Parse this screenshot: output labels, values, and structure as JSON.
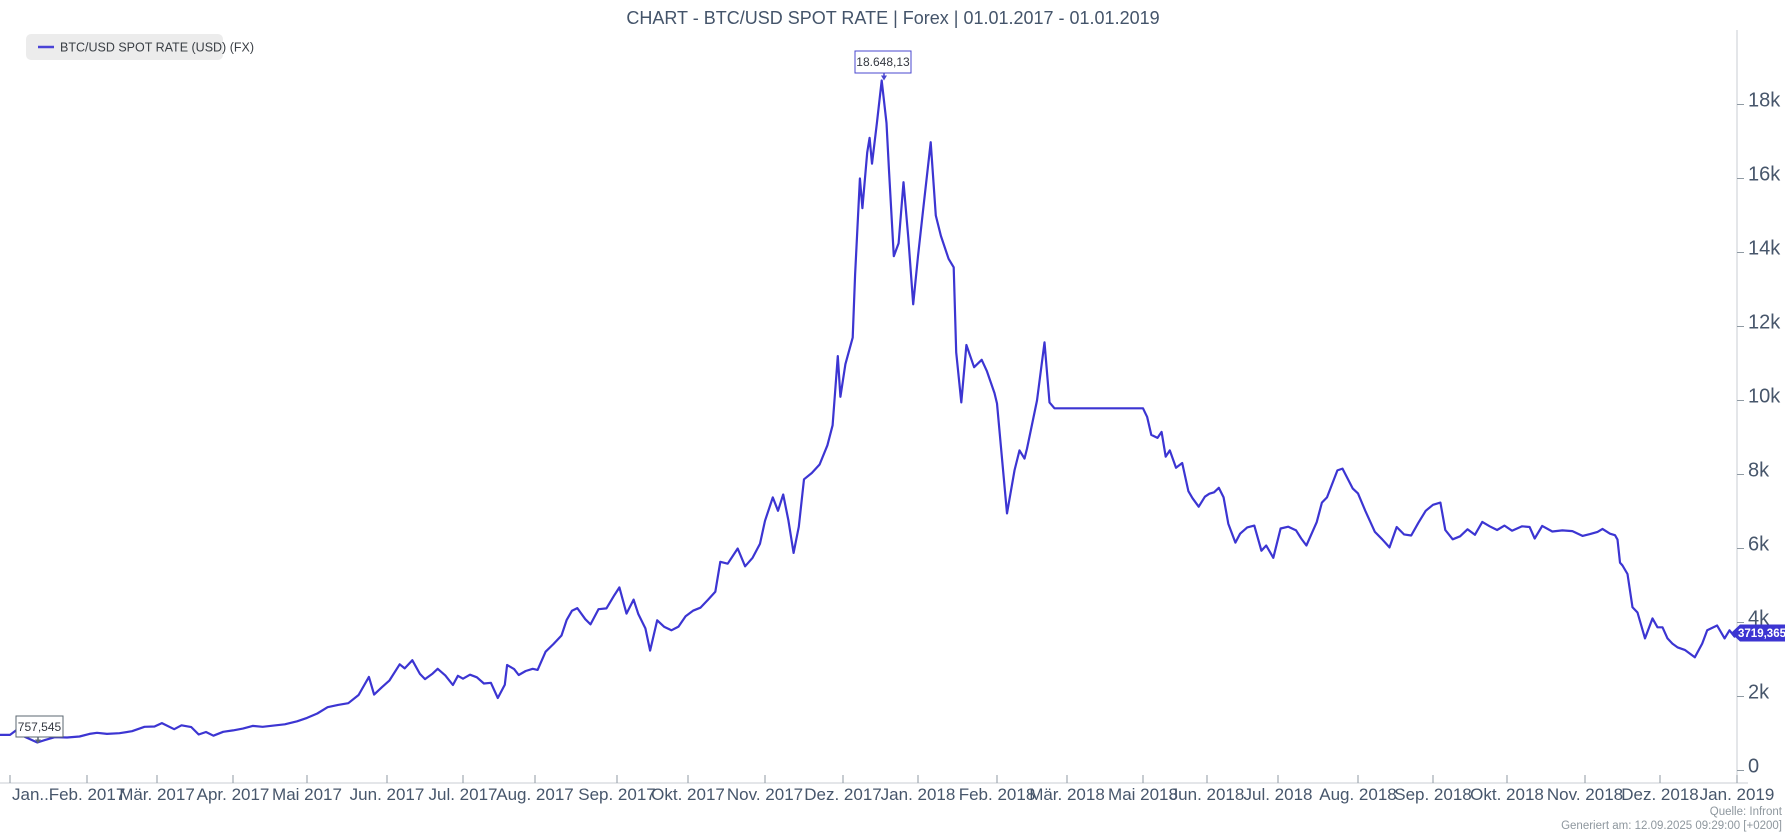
{
  "title": "CHART - BTC/USD SPOT RATE | Forex | 01.01.2017 - 01.01.2019",
  "legend": {
    "label": "BTC/USD SPOT RATE (USD) (FX)"
  },
  "annotations": {
    "high_label": "18.648,13",
    "low_label": "757,545",
    "last_badge": "3719,365"
  },
  "footer": {
    "source": "Quelle: Infront",
    "generated_at": "Generiert am: 12.09.2025 09:29:00 [+0200]"
  },
  "colors": {
    "line": "#3c35d2",
    "badge_bg": "#3c35d2",
    "axis_line": "#c9ced3",
    "tick": "#8f9aa3",
    "label_text": "#47566b",
    "muted_text": "#8e979e",
    "legend_bg": "#ececec",
    "annotation_border_high": "#4a47cf",
    "annotation_border_low": "#5b6770"
  },
  "chart_data": {
    "type": "line",
    "title": "CHART - BTC/USD SPOT RATE | Forex | 01.01.2017 - 01.01.2019",
    "xlabel": "",
    "ylabel": "",
    "ylim": [
      0,
      20000
    ],
    "grid": false,
    "legend_position": "top-left",
    "x_tick_labels": [
      "Jan...",
      "Feb. 2017",
      "Mär. 2017",
      "Apr. 2017",
      "Mai 2017",
      "Jun. 2017",
      "Jul. 2017",
      "Aug. 2017",
      "Sep. 2017",
      "Okt. 2017",
      "Nov. 2017",
      "Dez. 2017",
      "Jan. 2018",
      "Feb. 2018",
      "Mär. 2018",
      "Mai 2018",
      "Jun. 2018",
      "Jul. 2018",
      "Aug. 2018",
      "Sep. 2018",
      "Okt. 2018",
      "Nov. 2018",
      "Dez. 2018",
      "Jan. 2019"
    ],
    "y_tick_labels": [
      "0",
      "2k",
      "4k",
      "6k",
      "8k",
      "10k",
      "12k",
      "14k",
      "16k",
      "18k"
    ],
    "y_tick_values": [
      0,
      2000,
      4000,
      6000,
      8000,
      10000,
      12000,
      14000,
      16000,
      18000
    ],
    "stats": {
      "high": 18648.13,
      "low": 757.545,
      "last": 3719.365
    },
    "notes": "Apr. 2018 absent from axis; flat segment late Feb 2018 to 01.05.2018 (data gap held at ~9790).",
    "series": [
      {
        "name": "BTC/USD SPOT RATE (USD) (FX)",
        "color": "#3c35d2",
        "points": [
          [
            "2017-01-01",
            963
          ],
          [
            "2017-01-04",
            1114
          ],
          [
            "2017-01-07",
            908
          ],
          [
            "2017-01-12",
            757.545
          ],
          [
            "2017-01-15",
            821
          ],
          [
            "2017-01-19",
            899
          ],
          [
            "2017-01-24",
            892
          ],
          [
            "2017-01-29",
            920
          ],
          [
            "2017-02-02",
            989
          ],
          [
            "2017-02-05",
            1018
          ],
          [
            "2017-02-09",
            988
          ],
          [
            "2017-02-14",
            1008
          ],
          [
            "2017-02-19",
            1062
          ],
          [
            "2017-02-24",
            1180
          ],
          [
            "2017-02-28",
            1190
          ],
          [
            "2017-03-03",
            1280
          ],
          [
            "2017-03-08",
            1115
          ],
          [
            "2017-03-11",
            1222
          ],
          [
            "2017-03-15",
            1172
          ],
          [
            "2017-03-18",
            972
          ],
          [
            "2017-03-21",
            1040
          ],
          [
            "2017-03-24",
            940
          ],
          [
            "2017-03-28",
            1046
          ],
          [
            "2017-04-01",
            1085
          ],
          [
            "2017-04-05",
            1133
          ],
          [
            "2017-04-09",
            1206
          ],
          [
            "2017-04-13",
            1180
          ],
          [
            "2017-04-17",
            1210
          ],
          [
            "2017-04-22",
            1250
          ],
          [
            "2017-04-27",
            1330
          ],
          [
            "2017-05-01",
            1421
          ],
          [
            "2017-05-05",
            1540
          ],
          [
            "2017-05-09",
            1712
          ],
          [
            "2017-05-13",
            1772
          ],
          [
            "2017-05-17",
            1819
          ],
          [
            "2017-05-21",
            2041
          ],
          [
            "2017-05-25",
            2530
          ],
          [
            "2017-05-27",
            2050
          ],
          [
            "2017-05-30",
            2250
          ],
          [
            "2017-06-02",
            2435
          ],
          [
            "2017-06-06",
            2870
          ],
          [
            "2017-06-08",
            2760
          ],
          [
            "2017-06-11",
            2980
          ],
          [
            "2017-06-14",
            2610
          ],
          [
            "2017-06-16",
            2470
          ],
          [
            "2017-06-19",
            2620
          ],
          [
            "2017-06-21",
            2750
          ],
          [
            "2017-06-24",
            2570
          ],
          [
            "2017-06-27",
            2310
          ],
          [
            "2017-06-29",
            2560
          ],
          [
            "2017-07-01",
            2480
          ],
          [
            "2017-07-04",
            2590
          ],
          [
            "2017-07-07",
            2520
          ],
          [
            "2017-07-10",
            2350
          ],
          [
            "2017-07-13",
            2370
          ],
          [
            "2017-07-16",
            1960
          ],
          [
            "2017-07-19",
            2320
          ],
          [
            "2017-07-20",
            2850
          ],
          [
            "2017-07-23",
            2740
          ],
          [
            "2017-07-25",
            2580
          ],
          [
            "2017-07-28",
            2690
          ],
          [
            "2017-07-31",
            2750
          ],
          [
            "2017-08-02",
            2720
          ],
          [
            "2017-08-05",
            3210
          ],
          [
            "2017-08-08",
            3420
          ],
          [
            "2017-08-11",
            3650
          ],
          [
            "2017-08-13",
            4070
          ],
          [
            "2017-08-15",
            4320
          ],
          [
            "2017-08-17",
            4390
          ],
          [
            "2017-08-20",
            4090
          ],
          [
            "2017-08-22",
            3950
          ],
          [
            "2017-08-25",
            4360
          ],
          [
            "2017-08-28",
            4380
          ],
          [
            "2017-08-31",
            4740
          ],
          [
            "2017-09-02",
            4950
          ],
          [
            "2017-09-05",
            4240
          ],
          [
            "2017-09-08",
            4620
          ],
          [
            "2017-09-10",
            4230
          ],
          [
            "2017-09-13",
            3840
          ],
          [
            "2017-09-15",
            3240
          ],
          [
            "2017-09-18",
            4060
          ],
          [
            "2017-09-21",
            3880
          ],
          [
            "2017-09-24",
            3790
          ],
          [
            "2017-09-27",
            3890
          ],
          [
            "2017-09-30",
            4170
          ],
          [
            "2017-10-03",
            4320
          ],
          [
            "2017-10-06",
            4400
          ],
          [
            "2017-10-09",
            4610
          ],
          [
            "2017-10-12",
            4830
          ],
          [
            "2017-10-14",
            5640
          ],
          [
            "2017-10-17",
            5590
          ],
          [
            "2017-10-21",
            6000
          ],
          [
            "2017-10-24",
            5520
          ],
          [
            "2017-10-27",
            5750
          ],
          [
            "2017-10-30",
            6130
          ],
          [
            "2017-11-01",
            6750
          ],
          [
            "2017-11-04",
            7380
          ],
          [
            "2017-11-06",
            7020
          ],
          [
            "2017-11-08",
            7460
          ],
          [
            "2017-11-10",
            6760
          ],
          [
            "2017-11-12",
            5880
          ],
          [
            "2017-11-14",
            6590
          ],
          [
            "2017-11-16",
            7870
          ],
          [
            "2017-11-19",
            8040
          ],
          [
            "2017-11-22",
            8270
          ],
          [
            "2017-11-25",
            8790
          ],
          [
            "2017-11-27",
            9330
          ],
          [
            "2017-11-29",
            11200
          ],
          [
            "2017-11-30",
            10100
          ],
          [
            "2017-12-02",
            10980
          ],
          [
            "2017-12-05",
            11700
          ],
          [
            "2017-12-06",
            13400
          ],
          [
            "2017-12-08",
            16000
          ],
          [
            "2017-12-09",
            15200
          ],
          [
            "2017-12-11",
            16700
          ],
          [
            "2017-12-12",
            17100
          ],
          [
            "2017-12-13",
            16400
          ],
          [
            "2017-12-15",
            17500
          ],
          [
            "2017-12-17",
            18648.13
          ],
          [
            "2017-12-19",
            17500
          ],
          [
            "2017-12-20",
            16220
          ],
          [
            "2017-12-22",
            13900
          ],
          [
            "2017-12-24",
            14250
          ],
          [
            "2017-12-26",
            15900
          ],
          [
            "2017-12-28",
            14400
          ],
          [
            "2017-12-30",
            12600
          ],
          [
            "2018-01-01",
            13900
          ],
          [
            "2018-01-03",
            15150
          ],
          [
            "2018-01-06",
            16980
          ],
          [
            "2018-01-08",
            15000
          ],
          [
            "2018-01-10",
            14450
          ],
          [
            "2018-01-13",
            13830
          ],
          [
            "2018-01-15",
            13600
          ],
          [
            "2018-01-16",
            11300
          ],
          [
            "2018-01-18",
            9950
          ],
          [
            "2018-01-20",
            11500
          ],
          [
            "2018-01-23",
            10900
          ],
          [
            "2018-01-26",
            11100
          ],
          [
            "2018-01-28",
            10800
          ],
          [
            "2018-01-31",
            10200
          ],
          [
            "2018-02-01",
            9920
          ],
          [
            "2018-02-05",
            6950
          ],
          [
            "2018-02-08",
            8110
          ],
          [
            "2018-02-10",
            8650
          ],
          [
            "2018-02-12",
            8430
          ],
          [
            "2018-02-13",
            8700
          ],
          [
            "2018-02-17",
            10000
          ],
          [
            "2018-02-20",
            11570
          ],
          [
            "2018-02-22",
            9950
          ],
          [
            "2018-02-24",
            9790
          ],
          [
            "2018-05-01",
            9790
          ],
          [
            "2018-05-03",
            9560
          ],
          [
            "2018-05-05",
            9070
          ],
          [
            "2018-05-08",
            8990
          ],
          [
            "2018-05-10",
            9150
          ],
          [
            "2018-05-12",
            8480
          ],
          [
            "2018-05-14",
            8650
          ],
          [
            "2018-05-17",
            8180
          ],
          [
            "2018-05-20",
            8310
          ],
          [
            "2018-05-23",
            7550
          ],
          [
            "2018-05-25",
            7360
          ],
          [
            "2018-05-28",
            7130
          ],
          [
            "2018-05-31",
            7400
          ],
          [
            "2018-06-02",
            7480
          ],
          [
            "2018-06-04",
            7520
          ],
          [
            "2018-06-06",
            7640
          ],
          [
            "2018-06-08",
            7380
          ],
          [
            "2018-06-10",
            6670
          ],
          [
            "2018-06-13",
            6160
          ],
          [
            "2018-06-15",
            6400
          ],
          [
            "2018-06-18",
            6570
          ],
          [
            "2018-06-21",
            6620
          ],
          [
            "2018-06-24",
            5940
          ],
          [
            "2018-06-26",
            6080
          ],
          [
            "2018-06-29",
            5750
          ],
          [
            "2018-07-02",
            6540
          ],
          [
            "2018-07-05",
            6590
          ],
          [
            "2018-07-08",
            6490
          ],
          [
            "2018-07-10",
            6270
          ],
          [
            "2018-07-12",
            6080
          ],
          [
            "2018-07-16",
            6710
          ],
          [
            "2018-07-18",
            7240
          ],
          [
            "2018-07-20",
            7380
          ],
          [
            "2018-07-24",
            8110
          ],
          [
            "2018-07-26",
            8160
          ],
          [
            "2018-07-30",
            7620
          ],
          [
            "2018-08-01",
            7490
          ],
          [
            "2018-08-04",
            7020
          ],
          [
            "2018-08-08",
            6450
          ],
          [
            "2018-08-11",
            6250
          ],
          [
            "2018-08-14",
            6030
          ],
          [
            "2018-08-17",
            6580
          ],
          [
            "2018-08-20",
            6380
          ],
          [
            "2018-08-23",
            6350
          ],
          [
            "2018-08-26",
            6700
          ],
          [
            "2018-08-29",
            7020
          ],
          [
            "2018-09-01",
            7180
          ],
          [
            "2018-09-04",
            7240
          ],
          [
            "2018-09-06",
            6500
          ],
          [
            "2018-09-09",
            6250
          ],
          [
            "2018-09-12",
            6330
          ],
          [
            "2018-09-15",
            6520
          ],
          [
            "2018-09-18",
            6370
          ],
          [
            "2018-09-21",
            6720
          ],
          [
            "2018-09-24",
            6600
          ],
          [
            "2018-09-27",
            6500
          ],
          [
            "2018-09-30",
            6620
          ],
          [
            "2018-10-03",
            6480
          ],
          [
            "2018-10-07",
            6600
          ],
          [
            "2018-10-10",
            6580
          ],
          [
            "2018-10-12",
            6270
          ],
          [
            "2018-10-15",
            6610
          ],
          [
            "2018-10-19",
            6460
          ],
          [
            "2018-10-23",
            6490
          ],
          [
            "2018-10-27",
            6470
          ],
          [
            "2018-10-31",
            6340
          ],
          [
            "2018-11-03",
            6390
          ],
          [
            "2018-11-06",
            6450
          ],
          [
            "2018-11-08",
            6530
          ],
          [
            "2018-11-11",
            6400
          ],
          [
            "2018-11-13",
            6360
          ],
          [
            "2018-11-14",
            6240
          ],
          [
            "2018-11-15",
            5620
          ],
          [
            "2018-11-16",
            5540
          ],
          [
            "2018-11-18",
            5310
          ],
          [
            "2018-11-20",
            4410
          ],
          [
            "2018-11-22",
            4270
          ],
          [
            "2018-11-25",
            3570
          ],
          [
            "2018-11-28",
            4110
          ],
          [
            "2018-11-30",
            3870
          ],
          [
            "2018-12-02",
            3870
          ],
          [
            "2018-12-04",
            3570
          ],
          [
            "2018-12-06",
            3430
          ],
          [
            "2018-12-08",
            3330
          ],
          [
            "2018-12-11",
            3260
          ],
          [
            "2018-12-15",
            3060
          ],
          [
            "2018-12-18",
            3430
          ],
          [
            "2018-12-20",
            3790
          ],
          [
            "2018-12-24",
            3920
          ],
          [
            "2018-12-27",
            3570
          ],
          [
            "2018-12-29",
            3790
          ],
          [
            "2018-12-31",
            3620
          ],
          [
            "2019-01-01",
            3719.365
          ]
        ]
      }
    ]
  }
}
